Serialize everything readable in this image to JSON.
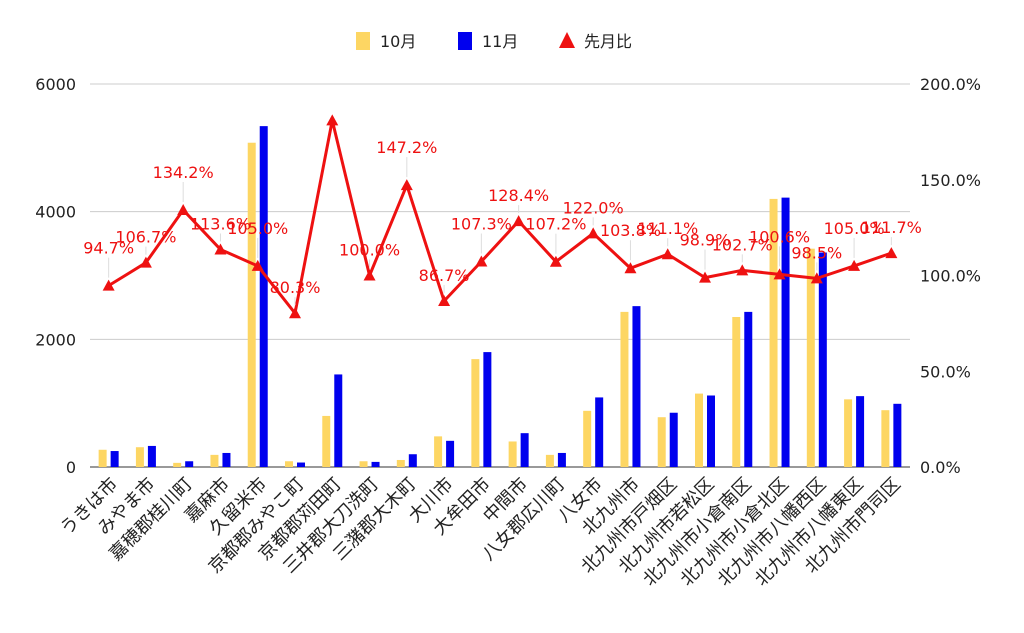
{
  "chart_data": {
    "type": "bar",
    "categories": [
      "うきは市",
      "みやま市",
      "嘉穂郡桂川町",
      "嘉麻市",
      "久留米市",
      "京都郡みやこ町",
      "京都郡苅田町",
      "三井郡大刀洗町",
      "三潴郡大木町",
      "大川市",
      "大牟田市",
      "中間市",
      "八女郡広川町",
      "八女市",
      "北九州市",
      "北九州市戸畑区",
      "北九州市若松区",
      "北九州市小倉南区",
      "北九州市小倉北区",
      "北九州市八幡西区",
      "北九州市八幡東区",
      "北九州市門司区"
    ],
    "series": [
      {
        "name": "10月",
        "color": "#fdd663",
        "values": [
          270,
          310,
          65,
          190,
          5080,
          90,
          800,
          90,
          110,
          480,
          1690,
          400,
          190,
          880,
          2430,
          780,
          1150,
          2350,
          4200,
          3420,
          1060,
          890
        ]
      },
      {
        "name": "11月",
        "color": "#0000ee",
        "values": [
          250,
          330,
          90,
          220,
          5340,
          70,
          1450,
          80,
          200,
          410,
          1800,
          530,
          220,
          1090,
          2520,
          850,
          1120,
          2430,
          4220,
          3360,
          1110,
          990
        ]
      }
    ],
    "ratio_series": {
      "name": "先月比",
      "color": "#ee1111",
      "values": [
        94.7,
        106.7,
        134.2,
        113.6,
        105.0,
        80.3,
        181.0,
        100.0,
        147.2,
        86.7,
        107.3,
        128.4,
        107.2,
        122.0,
        103.8,
        111.1,
        98.9,
        102.7,
        100.6,
        98.5,
        105.0,
        111.7
      ],
      "labels": [
        "94.7%",
        "106.7%",
        "134.2%",
        "113.6%",
        "105.0%",
        "80.3%",
        "",
        "100.0%",
        "147.2%",
        "86.7%",
        "107.3%",
        "128.4%",
        "107.2%",
        "122.0%",
        "103.8%",
        "111.1%",
        "98.9%",
        "102.7%",
        "100.6%",
        "98.5%",
        "105.0%",
        "111.7%"
      ]
    },
    "y_left": {
      "min": 0,
      "max": 6000,
      "ticks": [
        "0",
        "2000",
        "4000",
        "6000"
      ]
    },
    "y_right": {
      "min": 0,
      "max": 200,
      "ticks": [
        "0.0%",
        "50.0%",
        "100.0%",
        "150.0%",
        "200.0%"
      ]
    },
    "legend": {
      "position": "top",
      "items": [
        "10月",
        "11月",
        "先月比"
      ]
    },
    "grid": true
  }
}
